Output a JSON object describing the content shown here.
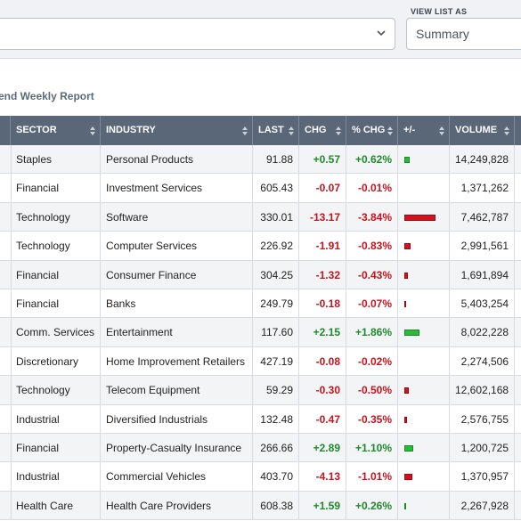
{
  "header": {
    "view_list_label": "VIEW LIST AS",
    "view_list_value": "Summary"
  },
  "report_link": "end Weekly Report",
  "table": {
    "columns": [
      "SECTOR",
      "INDUSTRY",
      "LAST",
      "CHG",
      "% CHG",
      "+/-",
      "VOLUME"
    ],
    "rows": [
      {
        "sector": "Staples",
        "industry": "Personal Products",
        "last": "91.88",
        "chg": "+0.57",
        "pct": "+0.62%",
        "pct_value": 0.62,
        "volume": "14,249,828"
      },
      {
        "sector": "Financial",
        "industry": "Investment Services",
        "last": "605.43",
        "chg": "-0.07",
        "pct": "-0.01%",
        "pct_value": -0.01,
        "volume": "1,371,262"
      },
      {
        "sector": "Technology",
        "industry": "Software",
        "last": "330.01",
        "chg": "-13.17",
        "pct": "-3.84%",
        "pct_value": -3.84,
        "volume": "7,462,787"
      },
      {
        "sector": "Technology",
        "industry": "Computer Services",
        "last": "226.92",
        "chg": "-1.91",
        "pct": "-0.83%",
        "pct_value": -0.83,
        "volume": "2,991,561"
      },
      {
        "sector": "Financial",
        "industry": "Consumer Finance",
        "last": "304.25",
        "chg": "-1.32",
        "pct": "-0.43%",
        "pct_value": -0.43,
        "volume": "1,691,894"
      },
      {
        "sector": "Financial",
        "industry": "Banks",
        "last": "249.79",
        "chg": "-0.18",
        "pct": "-0.07%",
        "pct_value": -0.07,
        "volume": "5,403,254"
      },
      {
        "sector": "Comm. Services",
        "industry": "Entertainment",
        "last": "117.60",
        "chg": "+2.15",
        "pct": "+1.86%",
        "pct_value": 1.86,
        "volume": "8,022,228"
      },
      {
        "sector": "Discretionary",
        "industry": "Home Improvement Retailers",
        "last": "427.19",
        "chg": "-0.08",
        "pct": "-0.02%",
        "pct_value": -0.02,
        "volume": "2,274,506"
      },
      {
        "sector": "Technology",
        "industry": "Telecom Equipment",
        "last": "59.29",
        "chg": "-0.30",
        "pct": "-0.50%",
        "pct_value": -0.5,
        "volume": "12,602,168"
      },
      {
        "sector": "Industrial",
        "industry": "Diversified Industrials",
        "last": "132.48",
        "chg": "-0.47",
        "pct": "-0.35%",
        "pct_value": -0.35,
        "volume": "2,576,755"
      },
      {
        "sector": "Financial",
        "industry": "Property-Casualty Insurance",
        "last": "266.66",
        "chg": "+2.89",
        "pct": "+1.10%",
        "pct_value": 1.1,
        "volume": "1,200,725"
      },
      {
        "sector": "Industrial",
        "industry": "Commercial Vehicles",
        "last": "403.70",
        "chg": "-4.13",
        "pct": "-1.01%",
        "pct_value": -1.01,
        "volume": "1,370,957"
      },
      {
        "sector": "Health Care",
        "industry": "Health Care Providers",
        "last": "608.38",
        "chg": "+1.59",
        "pct": "+0.26%",
        "pct_value": 0.26,
        "volume": "2,267,928"
      }
    ]
  }
}
